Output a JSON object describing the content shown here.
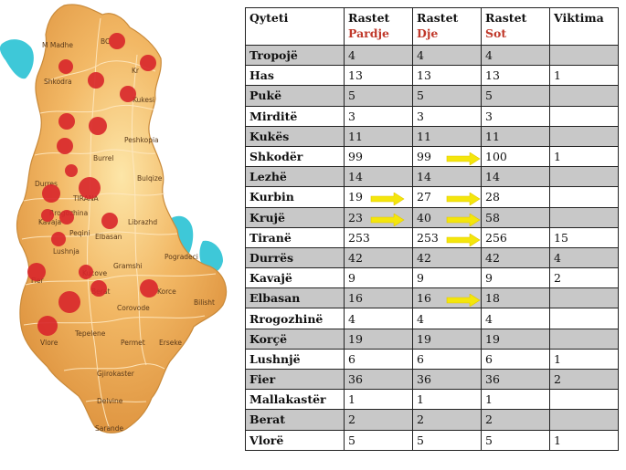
{
  "map": {
    "labels": [
      "M Madhe",
      "Shkodra",
      "BC",
      "Kr",
      "Kukesi",
      "Peshkopia",
      "Burrel",
      "Bulqize",
      "Durres",
      "TIRANA",
      "Rrogozhina",
      "Kavaja",
      "Peqini",
      "Librazhd",
      "Elbasan",
      "Lushnja",
      "Pogradeci",
      "Gramshi",
      "Fier",
      "Kucove",
      "Berat",
      "Korce",
      "Bilisht",
      "Corovode",
      "Vlore",
      "Tepelene",
      "Permet",
      "Erseke",
      "Gjirokaster",
      "Delvine",
      "Sarande"
    ],
    "land_color": "#e9a14f",
    "marker_color": "#d9262b",
    "water_color": "#3ec8d8"
  },
  "table": {
    "headers": [
      {
        "line1": "Qyteti",
        "line2": ""
      },
      {
        "line1": "Rastet",
        "line2": "Pardje"
      },
      {
        "line1": "Rastet",
        "line2": "Dje"
      },
      {
        "line1": "Rastet",
        "line2": "Sot"
      },
      {
        "line1": "Viktima",
        "line2": ""
      }
    ],
    "rows": [
      {
        "city": "Tropojë",
        "pardje": "4",
        "dje": "4",
        "sot": "4",
        "viktima": "",
        "shaded": true,
        "arrows": []
      },
      {
        "city": "Has",
        "pardje": "13",
        "dje": "13",
        "sot": "13",
        "viktima": "1",
        "shaded": false,
        "arrows": []
      },
      {
        "city": "Pukë",
        "pardje": "5",
        "dje": "5",
        "sot": "5",
        "viktima": "",
        "shaded": true,
        "arrows": []
      },
      {
        "city": "Mirditë",
        "pardje": "3",
        "dje": "3",
        "sot": "3",
        "viktima": "",
        "shaded": false,
        "arrows": []
      },
      {
        "city": "Kukës",
        "pardje": "11",
        "dje": "11",
        "sot": "11",
        "viktima": "",
        "shaded": true,
        "arrows": []
      },
      {
        "city": "Shkodër",
        "pardje": "99",
        "dje": "99",
        "sot": "100",
        "viktima": "1",
        "shaded": false,
        "arrows": [
          "dje"
        ]
      },
      {
        "city": "Lezhë",
        "pardje": "14",
        "dje": "14",
        "sot": "14",
        "viktima": "",
        "shaded": true,
        "arrows": []
      },
      {
        "city": "Kurbin",
        "pardje": "19",
        "dje": "27",
        "sot": "28",
        "viktima": "",
        "shaded": false,
        "arrows": [
          "pardje",
          "dje"
        ]
      },
      {
        "city": "Krujë",
        "pardje": "23",
        "dje": "40",
        "sot": "58",
        "viktima": "",
        "shaded": true,
        "arrows": [
          "pardje",
          "dje"
        ]
      },
      {
        "city": "Tiranë",
        "pardje": "253",
        "dje": "253",
        "sot": "256",
        "viktima": "15",
        "shaded": false,
        "arrows": [
          "dje"
        ]
      },
      {
        "city": "Durrës",
        "pardje": "42",
        "dje": "42",
        "sot": "42",
        "viktima": "4",
        "shaded": true,
        "arrows": []
      },
      {
        "city": "Kavajë",
        "pardje": "9",
        "dje": "9",
        "sot": "9",
        "viktima": "2",
        "shaded": false,
        "arrows": []
      },
      {
        "city": "Elbasan",
        "pardje": "16",
        "dje": "16",
        "sot": "18",
        "viktima": "",
        "shaded": true,
        "arrows": [
          "dje"
        ]
      },
      {
        "city": "Rrogozhinë",
        "pardje": "4",
        "dje": "4",
        "sot": "4",
        "viktima": "",
        "shaded": false,
        "arrows": []
      },
      {
        "city": "Korçë",
        "pardje": "19",
        "dje": "19",
        "sot": "19",
        "viktima": "",
        "shaded": true,
        "arrows": []
      },
      {
        "city": "Lushnjë",
        "pardje": "6",
        "dje": "6",
        "sot": "6",
        "viktima": "1",
        "shaded": false,
        "arrows": []
      },
      {
        "city": "Fier",
        "pardje": "36",
        "dje": "36",
        "sot": "36",
        "viktima": "2",
        "shaded": true,
        "arrows": []
      },
      {
        "city": "Mallakastër",
        "pardje": "1",
        "dje": "1",
        "sot": "1",
        "viktima": "",
        "shaded": false,
        "arrows": []
      },
      {
        "city": "Berat",
        "pardje": "2",
        "dje": "2",
        "sot": "2",
        "viktima": "",
        "shaded": true,
        "arrows": []
      },
      {
        "city": "Vlorë",
        "pardje": "5",
        "dje": "5",
        "sot": "5",
        "viktima": "1",
        "shaded": false,
        "arrows": []
      }
    ]
  }
}
